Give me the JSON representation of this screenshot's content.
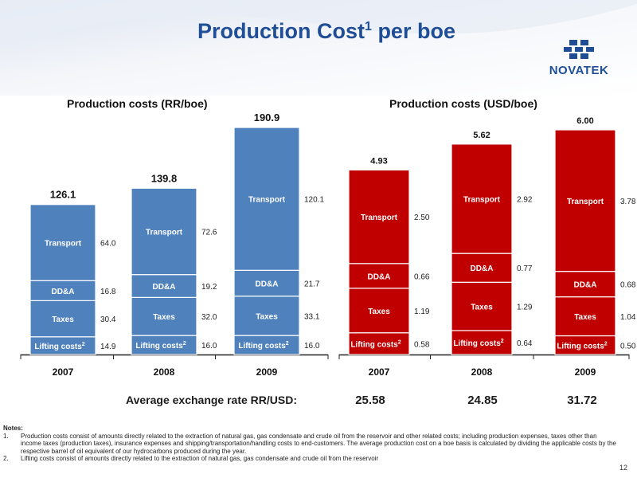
{
  "title": {
    "main": "Production Cost",
    "sup": "1",
    "tail": " per boe"
  },
  "logo": {
    "text": "NOVATEK"
  },
  "exchange": {
    "label": "Average exchange rate RR/USD:",
    "values": [
      "25.58",
      "24.85",
      "31.72"
    ]
  },
  "notes": {
    "header": "Notes:",
    "items": [
      {
        "num": "1.",
        "text": "Production costs consist of amounts directly related to the extraction of natural gas, gas condensate and crude oil from the reservoir and other related costs; including production expenses, taxes other than income taxes (production taxes), insurance expenses and shipping/transportation/handling costs to end-customers. The average production cost on a boe basis is calculated by dividing the applicable costs by the respective barrel of oil equivalent of our hydrocarbons produced during the year."
      },
      {
        "num": "2.",
        "text": "Lifting costs consist of amounts directly related to the extraction of natural gas, gas condensate and crude oil from the reservoir"
      }
    ]
  },
  "page_number": "12",
  "colors": {
    "title": "#1f4e96",
    "rub_bars": "#4f81bd",
    "usd_bars": "#c00000"
  },
  "chart_data": [
    {
      "type": "bar",
      "stacked": true,
      "title": "Production costs (RR/boe)",
      "categories": [
        "2007",
        "2008",
        "2009"
      ],
      "series": [
        {
          "name": "Lifting costs",
          "label_sup": "2",
          "values": [
            14.9,
            16.0,
            16.0
          ]
        },
        {
          "name": "Taxes",
          "values": [
            30.4,
            32.0,
            33.1
          ]
        },
        {
          "name": "DD&A",
          "values": [
            16.8,
            19.2,
            21.7
          ]
        },
        {
          "name": "Transport",
          "values": [
            64.0,
            72.6,
            120.1
          ]
        }
      ],
      "totals": [
        126.1,
        139.8,
        190.9
      ],
      "ylim": [
        0,
        190.9
      ],
      "grid": false
    },
    {
      "type": "bar",
      "stacked": true,
      "title": "Production costs (USD/boe)",
      "categories": [
        "2007",
        "2008",
        "2009"
      ],
      "series": [
        {
          "name": "Lifting costs",
          "label_sup": "2",
          "values": [
            0.58,
            0.64,
            0.5
          ]
        },
        {
          "name": "Taxes",
          "values": [
            1.19,
            1.29,
            1.04
          ]
        },
        {
          "name": "DD&A",
          "values": [
            0.66,
            0.77,
            0.68
          ]
        },
        {
          "name": "Transport",
          "values": [
            2.5,
            2.92,
            3.78
          ]
        }
      ],
      "totals": [
        4.93,
        5.62,
        6.0
      ],
      "ylim": [
        0,
        6.0
      ],
      "grid": false
    }
  ]
}
